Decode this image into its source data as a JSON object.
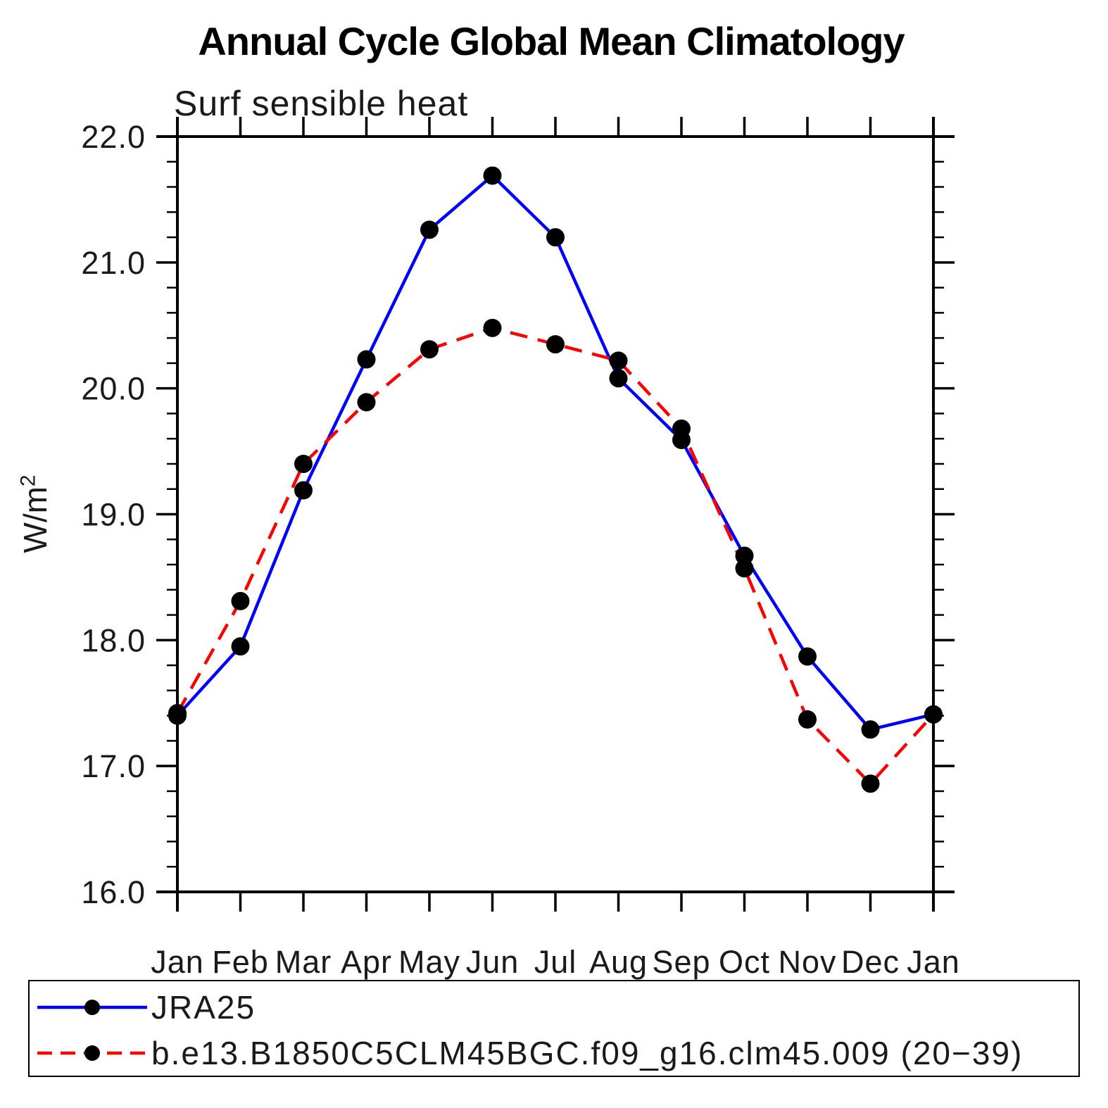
{
  "chart": {
    "title": "Annual Cycle Global Mean Climatology",
    "subtitle": "Surf sensible heat",
    "ylabel_base": "W/m",
    "ylabel_sup": "2"
  },
  "legend": {
    "items": [
      {
        "label": "JRA25",
        "color": "#0000ff",
        "line": "solid"
      },
      {
        "label": "b.e13.B1850C5CLM45BGC.f09_g16.clm45.009 (20−39)",
        "color": "#ff0000",
        "line": "dashed"
      }
    ]
  },
  "chart_data": {
    "type": "line",
    "title": "Annual Cycle Global Mean Climatology",
    "subtitle": "Surf sensible heat",
    "xlabel": "",
    "ylabel": "W/m²",
    "categories": [
      "Jan",
      "Feb",
      "Mar",
      "Apr",
      "May",
      "Jun",
      "Jul",
      "Aug",
      "Sep",
      "Oct",
      "Nov",
      "Dec",
      "Jan"
    ],
    "series": [
      {
        "name": "JRA25",
        "color": "#0000ff",
        "line": "solid",
        "marker": "filled-circle",
        "marker_color": "#000000",
        "values": [
          17.4,
          17.95,
          19.19,
          20.23,
          21.26,
          21.69,
          21.2,
          20.08,
          19.59,
          18.67,
          17.87,
          17.29,
          17.41
        ]
      },
      {
        "name": "b.e13.B1850C5CLM45BGC.f09_g16.clm45.009 (20−39)",
        "color": "#ff0000",
        "line": "dashed",
        "marker": "filled-circle",
        "marker_color": "#000000",
        "values": [
          17.42,
          18.31,
          19.4,
          19.89,
          20.31,
          20.48,
          20.35,
          20.22,
          19.68,
          18.57,
          17.37,
          16.86,
          17.41
        ]
      }
    ],
    "ylim": [
      16.0,
      22.0
    ],
    "yticks": [
      16,
      17,
      18,
      19,
      20,
      21,
      22
    ],
    "ytick_labels": [
      "16.0",
      "17.0",
      "18.0",
      "19.0",
      "20.0",
      "21.0",
      "22.0"
    ],
    "minor_ytick_step": 0.2,
    "grid": false,
    "tick_style": "outward-box",
    "legend_position": "bottom-box"
  }
}
